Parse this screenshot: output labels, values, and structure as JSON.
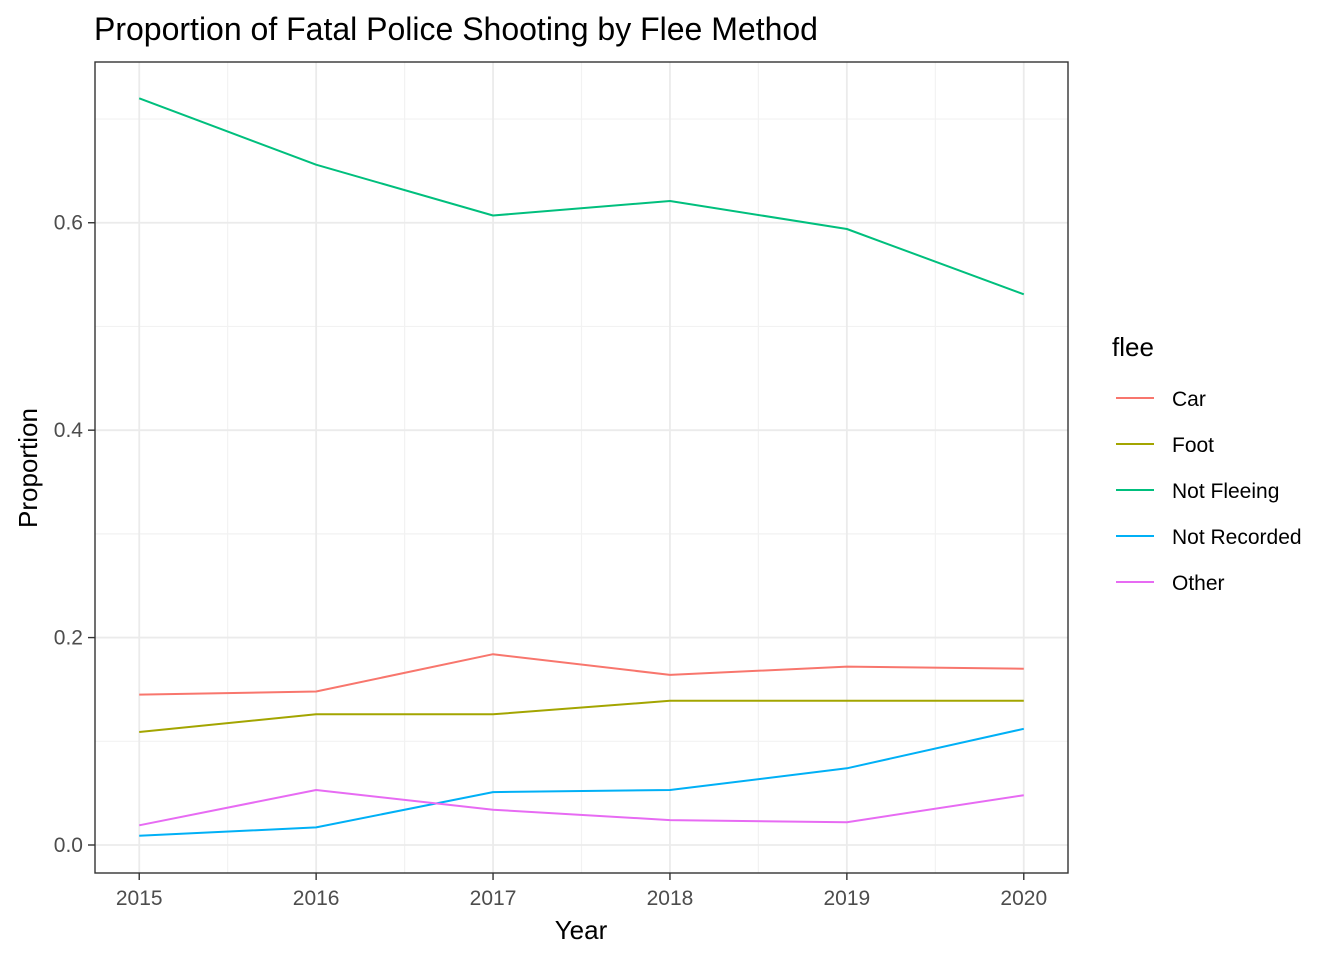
{
  "chart_data": {
    "type": "line",
    "title": "Proportion of Fatal Police Shooting by Flee Method",
    "xlabel": "Year",
    "ylabel": "Proportion",
    "x": [
      2015,
      2016,
      2017,
      2018,
      2019,
      2020
    ],
    "x_ticks": [
      "2015",
      "2016",
      "2017",
      "2018",
      "2019",
      "2020"
    ],
    "y_ticks": [
      "0.0",
      "0.2",
      "0.4",
      "0.6"
    ],
    "y_tick_values": [
      0.0,
      0.2,
      0.4,
      0.6
    ],
    "xlim": [
      2014.75,
      2020.25
    ],
    "ylim": [
      -0.027,
      0.755
    ],
    "grid": true,
    "legend": {
      "title": "flee",
      "position": "right"
    },
    "series": [
      {
        "name": "Car",
        "color": "#F8766D",
        "values": [
          0.145,
          0.148,
          0.184,
          0.164,
          0.172,
          0.17
        ]
      },
      {
        "name": "Foot",
        "color": "#A3A500",
        "values": [
          0.109,
          0.126,
          0.126,
          0.139,
          0.139,
          0.139
        ]
      },
      {
        "name": "Not Fleeing",
        "color": "#00BF7D",
        "values": [
          0.72,
          0.656,
          0.607,
          0.621,
          0.594,
          0.531
        ]
      },
      {
        "name": "Not Recorded",
        "color": "#00B0F6",
        "values": [
          0.009,
          0.017,
          0.051,
          0.053,
          0.074,
          0.112
        ]
      },
      {
        "name": "Other",
        "color": "#E76BF3",
        "values": [
          0.019,
          0.053,
          0.034,
          0.024,
          0.022,
          0.048
        ]
      }
    ]
  }
}
